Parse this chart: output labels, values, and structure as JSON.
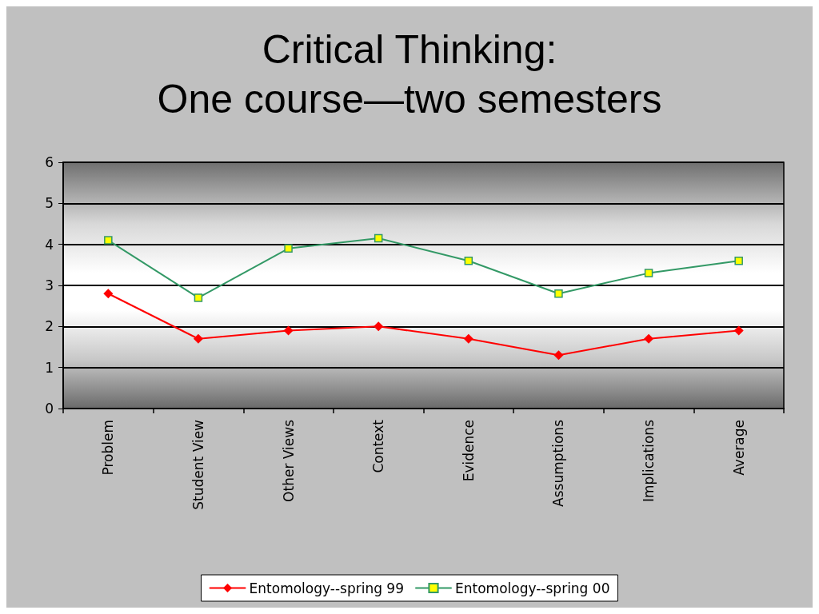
{
  "chart_data": {
    "type": "line",
    "title": "Critical Thinking:\nOne course—two semesters",
    "categories": [
      "Problem",
      "Student View",
      "Other Views",
      "Context",
      "Evidence",
      "Assumptions",
      "Implications",
      "Average"
    ],
    "series": [
      {
        "name": "Entomology--spring 99",
        "color": "#ff0000",
        "marker": "diamond",
        "values": [
          2.8,
          1.7,
          1.9,
          2.0,
          1.7,
          1.3,
          1.7,
          1.9
        ]
      },
      {
        "name": "Entomology--spring 00",
        "color": "#339966",
        "marker": "square",
        "values": [
          4.1,
          2.7,
          3.9,
          4.15,
          3.6,
          2.8,
          3.3,
          3.6
        ]
      }
    ],
    "ylim": [
      0,
      6
    ],
    "yticks": [
      0,
      1,
      2,
      3,
      4,
      5,
      6
    ],
    "grid": "y",
    "legend": "bottom",
    "line_style": "solid"
  }
}
